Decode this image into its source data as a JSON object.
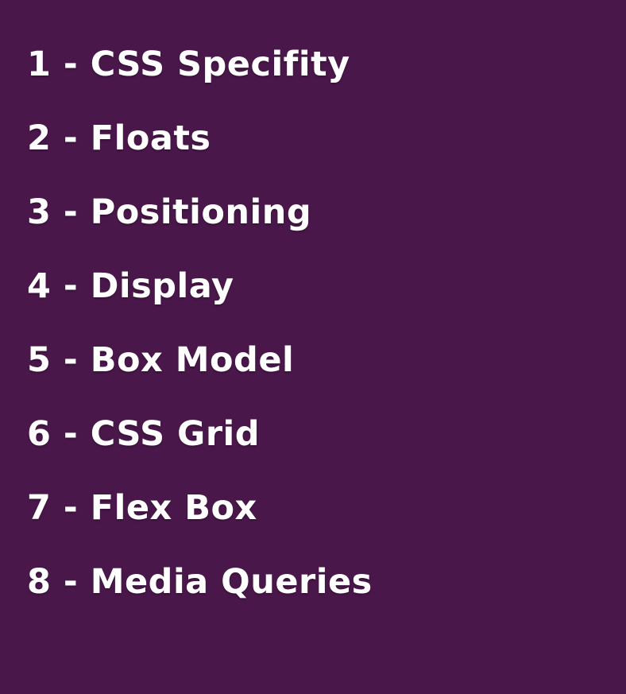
{
  "background_color": "#4a174b",
  "text_color": "#ffffff",
  "topics": [
    {
      "label": "1 - CSS Specifity"
    },
    {
      "label": "2 - Floats"
    },
    {
      "label": "3 - Positioning"
    },
    {
      "label": "4 - Display"
    },
    {
      "label": "5 - Box Model"
    },
    {
      "label": "6 - CSS Grid"
    },
    {
      "label": "7 - Flex Box"
    },
    {
      "label": "8 - Media Queries"
    }
  ]
}
